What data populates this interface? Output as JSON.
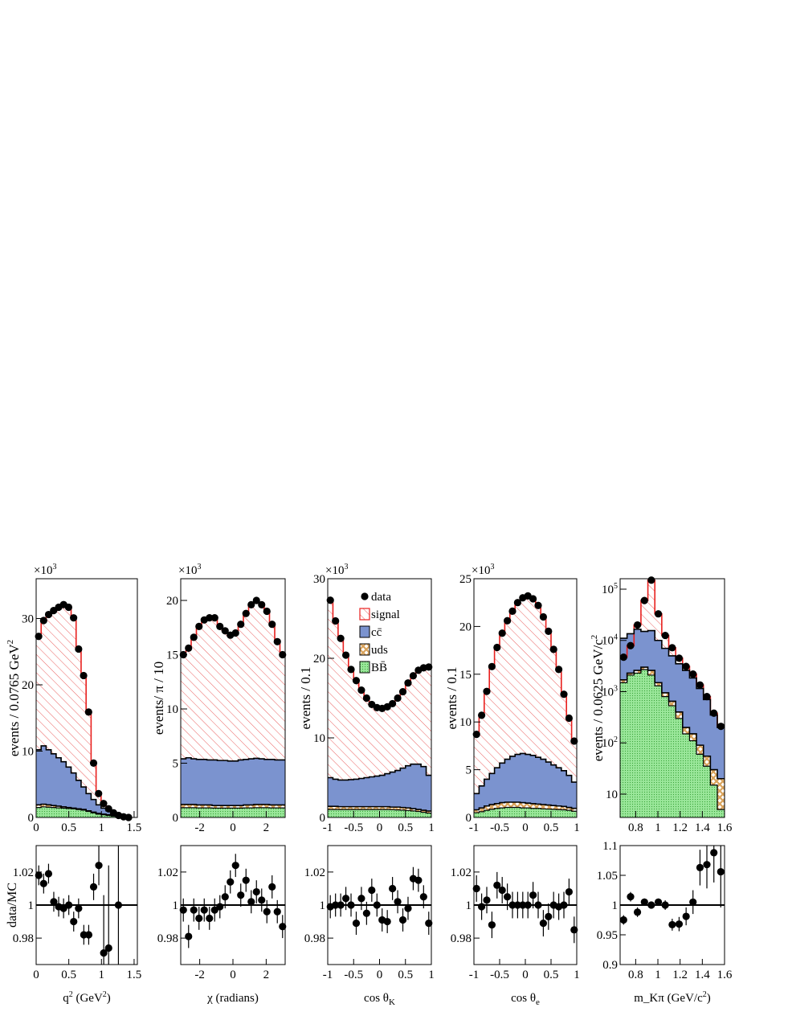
{
  "chart_data": [
    {
      "type": "histogram",
      "name": "q2",
      "multiplier": "×10³",
      "ylabel": "events / 0.0765 GeV²",
      "xlabel": "q² (GeV²)",
      "xlim": [
        0,
        1.55
      ],
      "ylim": [
        0,
        36
      ],
      "xticks": [
        0,
        0.5,
        1,
        1.5
      ],
      "xtick_labels": [
        "0",
        "0.5",
        "1",
        "1.5"
      ],
      "yticks": [
        0,
        10,
        20,
        30
      ],
      "ytick_labels": [
        "0",
        "10",
        "20",
        "30"
      ],
      "bin_edges": [
        0,
        0.0765,
        0.153,
        0.2295,
        0.306,
        0.3825,
        0.459,
        0.5355,
        0.612,
        0.6885,
        0.765,
        0.8415,
        0.918,
        0.9945,
        1.071,
        1.1475,
        1.224,
        1.3005,
        1.377,
        1.4535
      ],
      "data": [
        27.3,
        29.7,
        30.6,
        31.2,
        31.7,
        32.1,
        31.7,
        30.1,
        25.4,
        21.4,
        15.9,
        8.2,
        3.6,
        2.1,
        1.3,
        0.7,
        0.3,
        0.1,
        0.0
      ],
      "signal_total": [
        27.3,
        29.7,
        30.6,
        31.2,
        31.7,
        32.1,
        31.7,
        30.1,
        25.4,
        21.4,
        15.9,
        8.2,
        3.6,
        2.1,
        1.3,
        0.7,
        0.3,
        0.1,
        0.0
      ],
      "ccbar_total": [
        10.2,
        10.8,
        10.2,
        9.6,
        9.0,
        8.4,
        7.6,
        6.7,
        5.6,
        4.6,
        3.6,
        2.7,
        1.9,
        1.4,
        1.0,
        0.7,
        0.4,
        0.2,
        0.0
      ],
      "uds_total": [
        1.9,
        2.0,
        1.9,
        1.8,
        1.7,
        1.6,
        1.5,
        1.4,
        1.3,
        1.2,
        1.0,
        0.8,
        0.6,
        0.5,
        0.4,
        0.3,
        0.2,
        0.1,
        0.0
      ],
      "bbbar_total": [
        1.5,
        1.6,
        1.55,
        1.5,
        1.45,
        1.4,
        1.35,
        1.3,
        1.2,
        1.1,
        0.9,
        0.7,
        0.5,
        0.4,
        0.3,
        0.2,
        0.1,
        0.05,
        0.0
      ],
      "ratio": {
        "ylabel": "data/MC",
        "ylim": [
          0.964,
          1.036
        ],
        "yticks": [
          0.98,
          1,
          1.02
        ],
        "ytick_labels": [
          "0.98",
          "1",
          "1.02"
        ],
        "x": [
          0.04,
          0.115,
          0.19,
          0.27,
          0.345,
          0.42,
          0.5,
          0.575,
          0.65,
          0.73,
          0.805,
          0.88,
          0.96,
          1.035,
          1.11,
          1.26
        ],
        "y": [
          1.018,
          1.013,
          1.019,
          1.002,
          0.999,
          0.998,
          1.0,
          0.99,
          0.998,
          0.982,
          0.982,
          1.011,
          1.024,
          0.971,
          0.974,
          1.0
        ],
        "err": [
          0.006,
          0.006,
          0.006,
          0.006,
          0.006,
          0.006,
          0.006,
          0.006,
          0.006,
          0.006,
          0.006,
          0.008,
          0.012,
          0.035,
          0.05,
          0.08
        ]
      }
    },
    {
      "type": "histogram",
      "name": "chi",
      "multiplier": "×10³",
      "ylabel": "events/ π / 10",
      "xlabel": "χ (radians)",
      "xlim": [
        -3.1416,
        3.1416
      ],
      "ylim": [
        0,
        22
      ],
      "xticks": [
        -2,
        0,
        2
      ],
      "xtick_labels": [
        "-2",
        "0",
        "2"
      ],
      "yticks": [
        0,
        5,
        10,
        15,
        20
      ],
      "ytick_labels": [
        "0",
        "5",
        "10",
        "15",
        "20"
      ],
      "bin_edges": [
        -3.1416,
        -2.8274,
        -2.5133,
        -2.1991,
        -1.885,
        -1.5708,
        -1.2566,
        -0.9425,
        -0.6283,
        -0.3142,
        0,
        0.3142,
        0.6283,
        0.9425,
        1.2566,
        1.5708,
        1.885,
        2.1991,
        2.5133,
        2.8274,
        3.1416
      ],
      "data": [
        15.0,
        15.6,
        16.6,
        17.6,
        18.2,
        18.4,
        18.4,
        17.6,
        17.2,
        16.8,
        17.0,
        17.8,
        18.8,
        19.6,
        20.0,
        19.6,
        19.0,
        17.8,
        16.2,
        15.0
      ],
      "signal_total": [
        15.0,
        15.6,
        16.6,
        17.6,
        18.2,
        18.4,
        18.4,
        17.6,
        17.2,
        16.8,
        17.0,
        17.8,
        18.8,
        19.6,
        20.0,
        19.6,
        19.0,
        17.8,
        16.2,
        15.0
      ],
      "ccbar_total": [
        5.4,
        5.5,
        5.4,
        5.35,
        5.35,
        5.3,
        5.3,
        5.25,
        5.25,
        5.2,
        5.2,
        5.3,
        5.35,
        5.4,
        5.45,
        5.4,
        5.35,
        5.35,
        5.3,
        5.3
      ],
      "uds_total": [
        1.2,
        1.2,
        1.2,
        1.15,
        1.15,
        1.15,
        1.1,
        1.1,
        1.1,
        1.1,
        1.1,
        1.1,
        1.15,
        1.15,
        1.2,
        1.2,
        1.2,
        1.15,
        1.15,
        1.15
      ],
      "bbbar_total": [
        0.9,
        0.9,
        0.9,
        0.88,
        0.88,
        0.88,
        0.86,
        0.86,
        0.86,
        0.86,
        0.86,
        0.86,
        0.88,
        0.88,
        0.9,
        0.9,
        0.9,
        0.88,
        0.88,
        0.88
      ],
      "ratio": {
        "ylabel": "",
        "ylim": [
          0.964,
          1.036
        ],
        "yticks": [
          0.98,
          1,
          1.02
        ],
        "ytick_labels": [
          "0.98",
          "1",
          "1.02"
        ],
        "x": [
          -2.985,
          -2.67,
          -2.356,
          -2.042,
          -1.728,
          -1.414,
          -1.1,
          -0.785,
          -0.471,
          -0.157,
          0.157,
          0.471,
          0.785,
          1.1,
          1.414,
          1.728,
          2.042,
          2.356,
          2.67,
          2.985
        ],
        "y": [
          0.997,
          0.981,
          0.997,
          0.992,
          0.997,
          0.992,
          0.997,
          0.999,
          1.005,
          1.014,
          1.024,
          1.006,
          1.015,
          1.002,
          1.008,
          1.003,
          0.996,
          1.011,
          0.996,
          0.987
        ],
        "err": [
          0.007,
          0.007,
          0.007,
          0.007,
          0.007,
          0.007,
          0.007,
          0.007,
          0.007,
          0.007,
          0.007,
          0.007,
          0.007,
          0.007,
          0.007,
          0.007,
          0.007,
          0.007,
          0.007,
          0.007
        ]
      }
    },
    {
      "type": "histogram",
      "name": "costhetaK",
      "multiplier": "×10³",
      "ylabel": "events / 0.1",
      "xlabel": "cos θ_K",
      "xlim": [
        -1,
        1
      ],
      "ylim": [
        0,
        30
      ],
      "xticks": [
        -1,
        -0.5,
        0,
        0.5,
        1
      ],
      "xtick_labels": [
        "-1",
        "-0.5",
        "0",
        "0.5",
        "1"
      ],
      "yticks": [
        0,
        10,
        20,
        30
      ],
      "ytick_labels": [
        "0",
        "10",
        "20",
        "30"
      ],
      "bin_edges": [
        -1,
        -0.9,
        -0.8,
        -0.7,
        -0.6,
        -0.5,
        -0.4,
        -0.3,
        -0.2,
        -0.1,
        0,
        0.1,
        0.2,
        0.3,
        0.4,
        0.5,
        0.6,
        0.7,
        0.8,
        0.9,
        1
      ],
      "data": [
        27.3,
        24.7,
        22.5,
        20.4,
        18.6,
        17.2,
        16.0,
        15.0,
        14.2,
        13.8,
        13.7,
        13.9,
        14.3,
        15.0,
        15.8,
        16.9,
        17.8,
        18.5,
        18.8,
        18.9
      ],
      "signal_total": [
        27.3,
        24.7,
        22.5,
        20.4,
        18.6,
        17.2,
        16.0,
        15.0,
        14.2,
        13.8,
        13.7,
        13.9,
        14.3,
        15.0,
        15.8,
        16.9,
        17.8,
        18.5,
        18.8,
        18.9
      ],
      "ccbar_total": [
        5.0,
        4.8,
        4.7,
        4.7,
        4.75,
        4.8,
        4.9,
        5.0,
        5.1,
        5.2,
        5.3,
        5.5,
        5.7,
        5.9,
        6.2,
        6.5,
        6.7,
        6.7,
        6.4,
        5.3
      ],
      "uds_total": [
        1.4,
        1.4,
        1.35,
        1.35,
        1.35,
        1.35,
        1.35,
        1.35,
        1.35,
        1.35,
        1.35,
        1.35,
        1.3,
        1.3,
        1.25,
        1.2,
        1.1,
        1.0,
        0.9,
        0.8
      ],
      "bbbar_total": [
        1.0,
        1.0,
        1.0,
        1.0,
        1.0,
        1.0,
        1.0,
        1.0,
        1.0,
        1.0,
        1.0,
        1.0,
        0.98,
        0.95,
        0.92,
        0.88,
        0.82,
        0.75,
        0.65,
        0.55
      ],
      "ratio": {
        "ylabel": "",
        "ylim": [
          0.964,
          1.036
        ],
        "yticks": [
          0.98,
          1,
          1.02
        ],
        "ytick_labels": [
          "0.98",
          "1",
          "1.02"
        ],
        "x": [
          -0.95,
          -0.85,
          -0.75,
          -0.65,
          -0.55,
          -0.45,
          -0.35,
          -0.25,
          -0.15,
          -0.05,
          0.05,
          0.15,
          0.25,
          0.35,
          0.45,
          0.55,
          0.65,
          0.75,
          0.85,
          0.95
        ],
        "y": [
          0.999,
          1.0,
          1.0,
          1.004,
          1.0,
          0.989,
          1.004,
          0.995,
          1.009,
          1.0,
          0.991,
          0.99,
          1.01,
          1.002,
          0.991,
          0.998,
          1.016,
          1.015,
          1.005,
          0.989
        ],
        "err": [
          0.007,
          0.007,
          0.007,
          0.007,
          0.007,
          0.007,
          0.007,
          0.007,
          0.007,
          0.007,
          0.007,
          0.007,
          0.007,
          0.007,
          0.007,
          0.007,
          0.007,
          0.007,
          0.007,
          0.007
        ]
      },
      "legend": [
        "data",
        "signal",
        "cc̄",
        "uds",
        "BB̄"
      ]
    },
    {
      "type": "histogram",
      "name": "costhetae",
      "multiplier": "×10³",
      "ylabel": "events / 0.1",
      "xlabel": "cos θ_e",
      "xlim": [
        -1,
        1
      ],
      "ylim": [
        0,
        25
      ],
      "xticks": [
        -1,
        -0.5,
        0,
        0.5,
        1
      ],
      "xtick_labels": [
        "-1",
        "-0.5",
        "0",
        "0.5",
        "1"
      ],
      "yticks": [
        0,
        5,
        10,
        15,
        20,
        25
      ],
      "ytick_labels": [
        "0",
        "5",
        "10",
        "15",
        "20",
        "25"
      ],
      "bin_edges": [
        -1,
        -0.9,
        -0.8,
        -0.7,
        -0.6,
        -0.5,
        -0.4,
        -0.3,
        -0.2,
        -0.1,
        0,
        0.1,
        0.2,
        0.3,
        0.4,
        0.5,
        0.6,
        0.7,
        0.8,
        0.9,
        1
      ],
      "data": [
        8.7,
        10.7,
        13.2,
        15.8,
        17.8,
        19.3,
        20.6,
        21.6,
        22.5,
        23.0,
        23.2,
        22.9,
        22.2,
        21.0,
        19.5,
        17.6,
        15.5,
        12.9,
        10.4,
        8.0
      ],
      "signal_total": [
        8.7,
        10.7,
        13.2,
        15.8,
        17.8,
        19.3,
        20.6,
        21.6,
        22.5,
        23.0,
        23.2,
        22.9,
        22.2,
        21.0,
        19.5,
        17.6,
        15.5,
        12.9,
        10.4,
        8.0
      ],
      "ccbar_total": [
        2.5,
        3.3,
        4.0,
        4.6,
        5.2,
        5.7,
        6.1,
        6.4,
        6.6,
        6.7,
        6.6,
        6.5,
        6.3,
        6.1,
        5.8,
        5.5,
        5.2,
        4.9,
        4.4,
        3.7
      ],
      "uds_total": [
        0.8,
        1.0,
        1.2,
        1.35,
        1.45,
        1.55,
        1.6,
        1.6,
        1.6,
        1.55,
        1.5,
        1.45,
        1.4,
        1.35,
        1.3,
        1.25,
        1.2,
        1.15,
        1.05,
        0.95
      ],
      "bbbar_total": [
        0.5,
        0.6,
        0.75,
        0.85,
        0.95,
        1.0,
        1.05,
        1.05,
        1.05,
        1.0,
        1.0,
        0.95,
        0.95,
        0.9,
        0.88,
        0.85,
        0.82,
        0.8,
        0.75,
        0.65
      ],
      "ratio": {
        "ylabel": "",
        "ylim": [
          0.964,
          1.036
        ],
        "yticks": [
          0.98,
          1,
          1.02
        ],
        "ytick_labels": [
          "0.98",
          "1",
          "1.02"
        ],
        "x": [
          -0.95,
          -0.85,
          -0.75,
          -0.65,
          -0.55,
          -0.45,
          -0.35,
          -0.25,
          -0.15,
          -0.05,
          0.05,
          0.15,
          0.25,
          0.35,
          0.45,
          0.55,
          0.65,
          0.75,
          0.85,
          0.95
        ],
        "y": [
          1.01,
          0.999,
          1.003,
          0.988,
          1.012,
          1.009,
          1.005,
          1.0,
          1.0,
          1.0,
          1.0,
          1.006,
          1.0,
          0.989,
          0.993,
          1.0,
          0.999,
          1.0,
          1.008,
          0.985
        ],
        "err": [
          0.008,
          0.008,
          0.008,
          0.008,
          0.008,
          0.008,
          0.008,
          0.008,
          0.008,
          0.008,
          0.008,
          0.008,
          0.008,
          0.008,
          0.008,
          0.008,
          0.008,
          0.008,
          0.008,
          0.008
        ]
      }
    },
    {
      "type": "histogram",
      "name": "mKpi",
      "yscale": "log",
      "multiplier": "",
      "ylabel": "events / 0.0625 GeV/c²",
      "xlabel": "m_Kπ (GeV/c²)",
      "xlim": [
        0.66,
        1.6
      ],
      "ylim": [
        3.5,
        160000
      ],
      "xticks": [
        0.8,
        1,
        1.2,
        1.4,
        1.6
      ],
      "xtick_labels": [
        "0.8",
        "1",
        "1.2",
        "1.4",
        "1.6"
      ],
      "yticks": [
        10,
        100,
        1000,
        10000,
        100000
      ],
      "ytick_labels": [
        "10",
        "10²",
        "10³",
        "10⁴",
        "10⁵"
      ],
      "bin_edges": [
        0.66,
        0.7225,
        0.785,
        0.8475,
        0.91,
        0.9725,
        1.035,
        1.0975,
        1.16,
        1.2225,
        1.285,
        1.3475,
        1.41,
        1.4725,
        1.535,
        1.6
      ],
      "data": [
        4700,
        7900,
        20000,
        60000,
        150000,
        33000,
        12500,
        7200,
        4500,
        3100,
        2200,
        1350,
        800,
        380,
        210
      ],
      "signal_total": [
        4700,
        7900,
        20000,
        60000,
        150000,
        33000,
        12500,
        7200,
        4500,
        3100,
        2200,
        1350,
        800,
        380,
        210
      ],
      "ccbar_total": [
        11000,
        13500,
        16500,
        15000,
        15500,
        10000,
        7000,
        5000,
        3500,
        2600,
        1850,
        1150,
        700,
        350,
        200
      ],
      "uds_total": [
        1700,
        2300,
        2600,
        3000,
        2600,
        1500,
        950,
        650,
        400,
        200,
        150,
        90,
        55,
        30,
        20
      ],
      "bbbar_total": [
        1500,
        2100,
        2300,
        2700,
        2100,
        1300,
        800,
        530,
        300,
        150,
        110,
        60,
        35,
        15,
        5
      ],
      "ratio": {
        "ylabel": "",
        "ylim": [
          0.9,
          1.1
        ],
        "yticks": [
          0.9,
          0.95,
          1,
          1.05,
          1.1
        ],
        "ytick_labels": [
          "0.9",
          "0.95",
          "1",
          "1.05",
          "1.1"
        ],
        "x": [
          0.691,
          0.754,
          0.816,
          0.879,
          0.941,
          1.004,
          1.066,
          1.129,
          1.191,
          1.254,
          1.316,
          1.379,
          1.441,
          1.504,
          1.566
        ],
        "y": [
          0.975,
          1.014,
          0.988,
          1.005,
          1.0,
          1.005,
          1.0,
          0.967,
          0.968,
          0.981,
          1.005,
          1.063,
          1.068,
          1.088,
          1.056
        ],
        "err": [
          0.008,
          0.008,
          0.008,
          0.006,
          0.004,
          0.006,
          0.008,
          0.01,
          0.012,
          0.015,
          0.02,
          0.03,
          0.04,
          0.05,
          0.06
        ]
      }
    }
  ]
}
